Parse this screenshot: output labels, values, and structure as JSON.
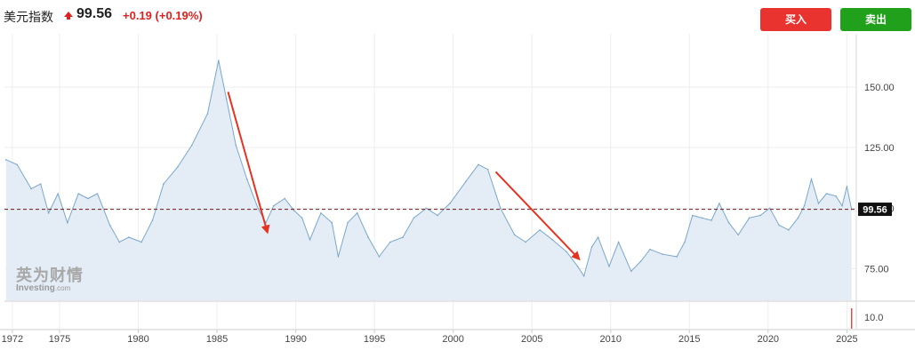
{
  "header": {
    "title": "美元指数",
    "price": "99.56",
    "change": "+0.19",
    "change_pct": "(+0.19%)",
    "buy_label": "买入",
    "sell_label": "卖出"
  },
  "watermark": {
    "cn": "英为财情",
    "en": "Investing",
    "en_suffix": ".com"
  },
  "colors": {
    "line": "#7aa7cc",
    "fill": "#e4edf6",
    "up": "#dd2222",
    "buy": "#e8332f",
    "sell": "#21a11b",
    "annotation": "#e53322"
  },
  "chart_data": {
    "type": "area",
    "title": "",
    "xlabel": "",
    "ylabel": "",
    "xlim": [
      1971.5,
      2025.6
    ],
    "ylim": [
      62,
      172
    ],
    "grid": true,
    "x_ticks": [
      1972,
      1975,
      1980,
      1985,
      1990,
      1995,
      2000,
      2005,
      2010,
      2015,
      2020,
      2025
    ],
    "y_ticks": [
      75,
      100,
      125,
      150
    ],
    "y_tick_labels": [
      "75.00",
      "100.00",
      "125.00",
      "150.00"
    ],
    "current_value": 99.56,
    "current_label": "99.56",
    "series": [
      {
        "values": [
          [
            1971.6,
            120
          ],
          [
            1972.3,
            118
          ],
          [
            1973.2,
            108
          ],
          [
            1973.8,
            110
          ],
          [
            1974.3,
            98
          ],
          [
            1974.9,
            106
          ],
          [
            1975.5,
            94
          ],
          [
            1976.2,
            106
          ],
          [
            1976.8,
            104
          ],
          [
            1977.4,
            106
          ],
          [
            1978.2,
            93
          ],
          [
            1978.8,
            86
          ],
          [
            1979.4,
            88
          ],
          [
            1980.2,
            86
          ],
          [
            1980.9,
            95
          ],
          [
            1981.6,
            110
          ],
          [
            1982.5,
            117
          ],
          [
            1983.4,
            126
          ],
          [
            1984.4,
            139
          ],
          [
            1985.1,
            161
          ],
          [
            1985.6,
            145
          ],
          [
            1986.2,
            126
          ],
          [
            1986.9,
            112
          ],
          [
            1987.6,
            100
          ],
          [
            1988.1,
            94
          ],
          [
            1988.6,
            101
          ],
          [
            1989.3,
            104
          ],
          [
            1989.9,
            99
          ],
          [
            1990.4,
            96
          ],
          [
            1990.9,
            87
          ],
          [
            1991.6,
            98
          ],
          [
            1992.3,
            94
          ],
          [
            1992.7,
            80
          ],
          [
            1993.3,
            94
          ],
          [
            1993.9,
            98
          ],
          [
            1994.6,
            88
          ],
          [
            1995.3,
            80
          ],
          [
            1996.0,
            86
          ],
          [
            1996.8,
            88
          ],
          [
            1997.5,
            96
          ],
          [
            1998.3,
            100
          ],
          [
            1999.0,
            97
          ],
          [
            1999.8,
            102
          ],
          [
            2000.8,
            111
          ],
          [
            2001.6,
            118
          ],
          [
            2002.2,
            116
          ],
          [
            2003.0,
            100
          ],
          [
            2003.9,
            89
          ],
          [
            2004.6,
            86
          ],
          [
            2005.5,
            91
          ],
          [
            2006.3,
            87
          ],
          [
            2007.2,
            82
          ],
          [
            2007.9,
            76
          ],
          [
            2008.3,
            72
          ],
          [
            2008.8,
            84
          ],
          [
            2009.2,
            88
          ],
          [
            2009.9,
            76
          ],
          [
            2010.5,
            86
          ],
          [
            2011.3,
            74
          ],
          [
            2011.9,
            78
          ],
          [
            2012.5,
            83
          ],
          [
            2013.3,
            81
          ],
          [
            2014.2,
            80
          ],
          [
            2014.7,
            86
          ],
          [
            2015.2,
            97
          ],
          [
            2015.8,
            96
          ],
          [
            2016.4,
            95
          ],
          [
            2016.9,
            102
          ],
          [
            2017.5,
            94
          ],
          [
            2018.1,
            89
          ],
          [
            2018.8,
            96
          ],
          [
            2019.5,
            97
          ],
          [
            2020.1,
            100
          ],
          [
            2020.7,
            93
          ],
          [
            2021.3,
            91
          ],
          [
            2021.9,
            96
          ],
          [
            2022.3,
            101
          ],
          [
            2022.75,
            112
          ],
          [
            2023.2,
            102
          ],
          [
            2023.7,
            106
          ],
          [
            2024.3,
            105
          ],
          [
            2024.7,
            101
          ],
          [
            2025.0,
            109
          ],
          [
            2025.3,
            99.56
          ]
        ]
      }
    ],
    "annotations": [
      {
        "type": "arrow",
        "from": [
          1985.7,
          148
        ],
        "to": [
          1988.2,
          90
        ]
      },
      {
        "type": "arrow",
        "from": [
          2002.7,
          115
        ],
        "to": [
          2008.0,
          79
        ]
      }
    ]
  }
}
